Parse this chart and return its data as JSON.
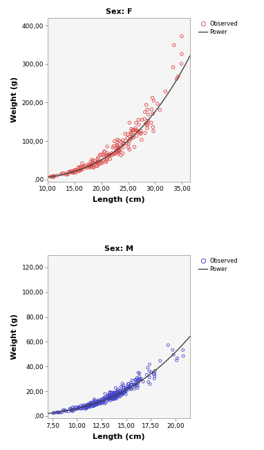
{
  "female": {
    "title": "Sex: F",
    "xlabel": "Length (cm)",
    "ylabel": "Weight (g)",
    "xlim": [
      10.0,
      36.5
    ],
    "ylim": [
      -5.0,
      420.0
    ],
    "xticks": [
      10.0,
      15.0,
      20.0,
      25.0,
      30.0,
      35.0
    ],
    "yticks": [
      0.0,
      100.0,
      200.0,
      300.0,
      400.0
    ],
    "a": 0.0053,
    "b": 3.062,
    "scatter_color": "#e05555",
    "line_color": "#404040",
    "scatter_size": 10,
    "scatter_lw": 0.7
  },
  "male": {
    "title": "Sex: M",
    "xlabel": "Length (cm)",
    "ylabel": "Weight (g)",
    "xlim": [
      7.0,
      21.5
    ],
    "ylim": [
      -2.0,
      130.0
    ],
    "xticks": [
      7.5,
      10.0,
      12.5,
      15.0,
      17.5,
      20.0
    ],
    "yticks": [
      0.0,
      20.0,
      40.0,
      60.0,
      80.0,
      100.0,
      120.0
    ],
    "a": 0.0049,
    "b": 3.091,
    "scatter_color": "#4444cc",
    "line_color": "#404040",
    "scatter_size": 8,
    "scatter_lw": 0.6
  },
  "background_color": "#ffffff",
  "plot_bg": "#f5f5f5"
}
